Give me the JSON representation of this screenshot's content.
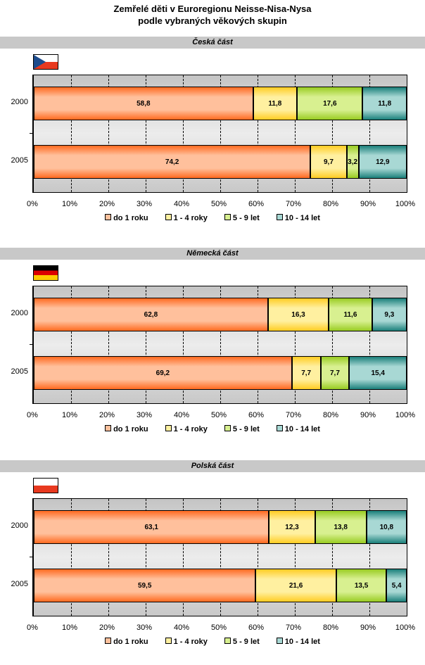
{
  "chart_data": {
    "type": "bar",
    "stacked": "percent",
    "orientation": "horizontal",
    "title": [
      "Zemřelé děti v Euroregionu Neisse-Nisa-Nysa",
      "podle vybraných věkových skupin"
    ],
    "xlim": [
      0,
      100
    ],
    "xticks": [
      "0%",
      "10%",
      "20%",
      "30%",
      "40%",
      "50%",
      "60%",
      "70%",
      "80%",
      "90%",
      "100%"
    ],
    "legend": [
      "do 1 roku",
      "1 - 4 roky",
      "5 - 9 let",
      "10 - 14 let"
    ],
    "legend_position": "bottom",
    "colors": [
      "#ff6a20",
      "#ffcc22",
      "#99cc22",
      "#1a7f7a"
    ],
    "light_colors": [
      "#ffc09c",
      "#fff0a0",
      "#d8f090",
      "#a8d8d4"
    ],
    "panels": [
      {
        "title": "Česká část",
        "flag": "cz",
        "categories": [
          "2000",
          "2005"
        ],
        "series": [
          [
            58.8,
            11.8,
            17.6,
            11.8
          ],
          [
            74.2,
            9.7,
            3.2,
            12.9
          ]
        ],
        "labels": [
          [
            "58,8",
            "11,8",
            "17,6",
            "11,8"
          ],
          [
            "74,2",
            "9,7",
            "3,2",
            "12,9"
          ]
        ]
      },
      {
        "title": "Německá část",
        "flag": "de",
        "categories": [
          "2000",
          "2005"
        ],
        "series": [
          [
            62.8,
            16.3,
            11.6,
            9.3
          ],
          [
            69.2,
            7.7,
            7.7,
            15.4
          ]
        ],
        "labels": [
          [
            "62,8",
            "16,3",
            "11,6",
            "9,3"
          ],
          [
            "69,2",
            "7,7",
            "7,7",
            "15,4"
          ]
        ]
      },
      {
        "title": "Polská část",
        "flag": "pl",
        "categories": [
          "2000",
          "2005"
        ],
        "series": [
          [
            63.1,
            12.3,
            13.8,
            10.8
          ],
          [
            59.5,
            21.6,
            13.5,
            5.4
          ]
        ],
        "labels": [
          [
            "63,1",
            "12,3",
            "13,8",
            "10,8"
          ],
          [
            "59,5",
            "21,6",
            "13,5",
            "5,4"
          ]
        ]
      }
    ]
  }
}
